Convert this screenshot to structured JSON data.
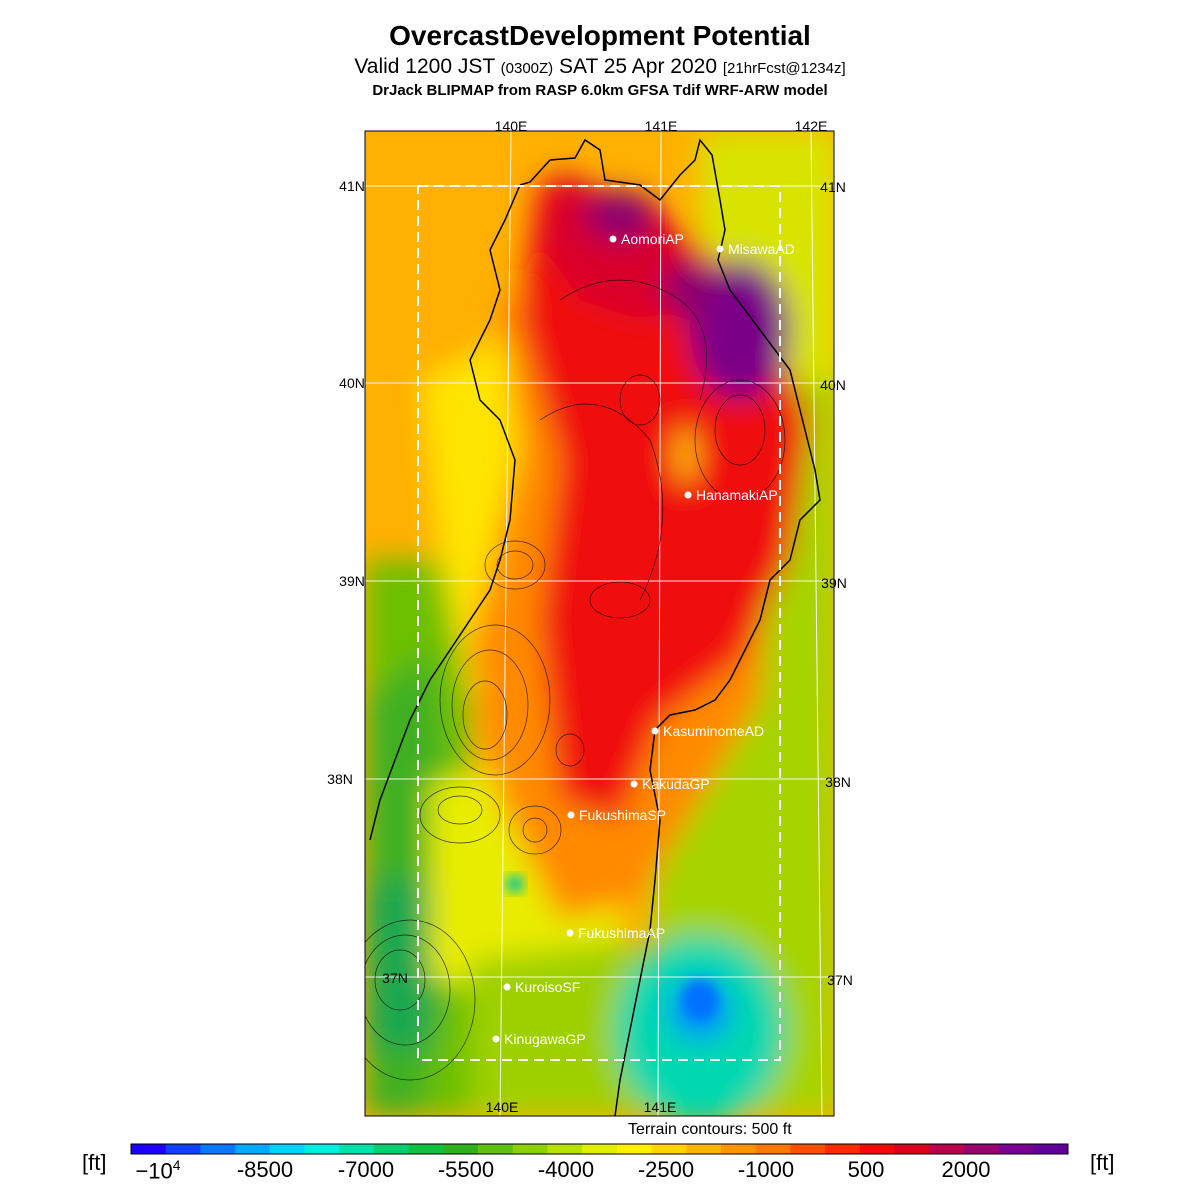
{
  "title": {
    "main": "OvercastDevelopment Potential",
    "valid_prefix": "Valid 1200 JST",
    "valid_zulu": "(0300Z)",
    "valid_date": "SAT 25 Apr 2020",
    "forecast": "[21hrFcst@1234z]",
    "source": "DrJack BLIPMAP from RASP 6.0km GFSA Tdif WRF-ARW model"
  },
  "map": {
    "lon_labels": [
      "140E",
      "141E",
      "142E"
    ],
    "lat_labels": [
      "41N",
      "40N",
      "39N",
      "38N",
      "37N"
    ],
    "stations": [
      {
        "name": "AomoriAP"
      },
      {
        "name": "MisawaAD"
      },
      {
        "name": "HanamakiAP"
      },
      {
        "name": "KasuminomeAD"
      },
      {
        "name": "KakudaGP"
      },
      {
        "name": "FukushimaSP"
      },
      {
        "name": "FukushimaAP"
      },
      {
        "name": "KuroisoSF"
      },
      {
        "name": "KinugawaGP"
      }
    ],
    "terrain_note": "Terrain contours: 500 ft"
  },
  "colorbar": {
    "unit": "[ft]",
    "labels": [
      "-10^4",
      "-8500",
      "-7000",
      "-5500",
      "-4000",
      "-2500",
      "-1000",
      "500",
      "2000"
    ],
    "colors": [
      "#1e00ff",
      "#1240ff",
      "#0a78ff",
      "#00aaff",
      "#00d4ff",
      "#00eedd",
      "#00e0a8",
      "#00d070",
      "#10c040",
      "#30b020",
      "#60c010",
      "#8cd000",
      "#b8e000",
      "#e0ee00",
      "#fff000",
      "#ffd200",
      "#ffb400",
      "#ff9600",
      "#ff7800",
      "#ff5000",
      "#ff2a00",
      "#f00a0a",
      "#d8001e",
      "#b8004a",
      "#980070",
      "#7a0090",
      "#600098"
    ]
  }
}
